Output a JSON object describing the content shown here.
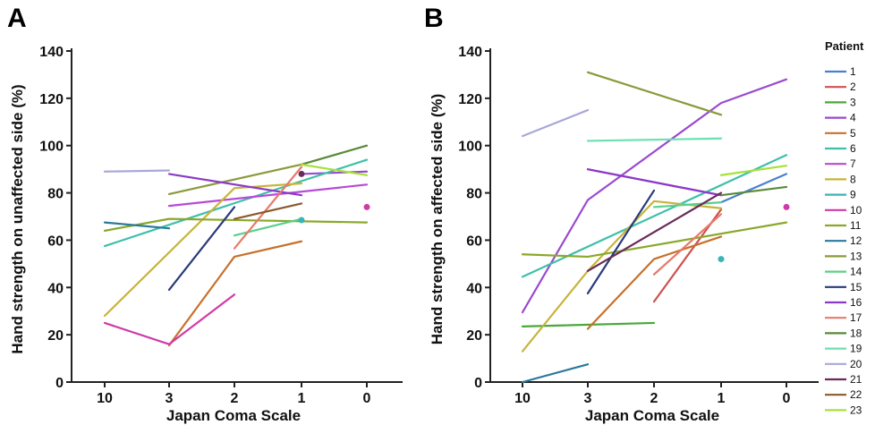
{
  "chart_data": [
    {
      "panel": "A",
      "type": "line",
      "ylabel": "Hand strength on unaffected side (%)",
      "xlabel": "Japan Coma Scale",
      "categories": [
        "10",
        "3",
        "2",
        "1",
        "0"
      ],
      "yticks": [
        0,
        20,
        40,
        60,
        80,
        100,
        120,
        140
      ],
      "ylim": [
        0,
        140
      ],
      "series": [
        {
          "name": "1",
          "color": "#4a7fd0",
          "points": [
            {
              "x": "1",
              "y": 88
            }
          ]
        },
        {
          "name": "2",
          "color": "#d05050",
          "points": [
            {
              "x": "1",
              "y": 88
            }
          ]
        },
        {
          "name": "3",
          "color": "#4aa83a",
          "points": [
            {
              "x": "1",
              "y": 68
            }
          ]
        },
        {
          "name": "4",
          "color": "#9a4ad0",
          "points": [
            {
              "x": "1",
              "y": 88
            },
            {
              "x": "0",
              "y": 89
            }
          ]
        },
        {
          "name": "5",
          "color": "#c8702a",
          "points": [
            {
              "x": "3",
              "y": 15.5
            },
            {
              "x": "2",
              "y": 53
            },
            {
              "x": "1",
              "y": 59.5
            }
          ]
        },
        {
          "name": "6",
          "color": "#3ec0a8",
          "points": [
            {
              "x": "10",
              "y": 57.5
            },
            {
              "x": "1",
              "y": 85
            },
            {
              "x": "0",
              "y": 94
            }
          ]
        },
        {
          "name": "7",
          "color": "#b84ad6",
          "points": [
            {
              "x": "3",
              "y": 74.5
            },
            {
              "x": "0",
              "y": 83.5
            }
          ]
        },
        {
          "name": "8",
          "color": "#c8b43a",
          "points": [
            {
              "x": "10",
              "y": 28
            },
            {
              "x": "2",
              "y": 82
            },
            {
              "x": "1",
              "y": 84
            }
          ]
        },
        {
          "name": "9",
          "color": "#3ab4b4",
          "points": [
            {
              "x": "1",
              "y": 68.5
            }
          ]
        },
        {
          "name": "10",
          "color": "#d03aa8",
          "points": [
            {
              "x": "10",
              "y": 25
            },
            {
              "x": "3",
              "y": 16
            },
            {
              "x": "2",
              "y": 37
            }
          ]
        },
        {
          "name": "11",
          "color": "#8aa82a",
          "points": [
            {
              "x": "10",
              "y": 64
            },
            {
              "x": "3",
              "y": 69
            },
            {
              "x": "0",
              "y": 67.5
            }
          ]
        },
        {
          "name": "12",
          "color": "#2a7a9a",
          "points": [
            {
              "x": "10",
              "y": 67.5
            },
            {
              "x": "3",
              "y": 65
            }
          ]
        },
        {
          "name": "13",
          "color": "#8a9a3a",
          "points": [
            {
              "x": "3",
              "y": 79.5
            },
            {
              "x": "1",
              "y": 92
            }
          ]
        },
        {
          "name": "14",
          "color": "#5ad08a",
          "points": [
            {
              "x": "2",
              "y": 62
            },
            {
              "x": "1",
              "y": 69
            }
          ]
        },
        {
          "name": "15",
          "color": "#2a3a7a",
          "points": [
            {
              "x": "3",
              "y": 39
            },
            {
              "x": "2",
              "y": 74
            }
          ]
        },
        {
          "name": "16",
          "color": "#8a3ac8",
          "points": [
            {
              "x": "3",
              "y": 88
            },
            {
              "x": "1",
              "y": 79
            }
          ]
        },
        {
          "name": "17",
          "color": "#e87a6a",
          "points": [
            {
              "x": "2",
              "y": 56.5
            },
            {
              "x": "1",
              "y": 91
            }
          ]
        },
        {
          "name": "18",
          "color": "#5a8a3a",
          "points": [
            {
              "x": "1",
              "y": 92
            },
            {
              "x": "0",
              "y": 100
            }
          ]
        },
        {
          "name": "19",
          "color": "#6ae0b0",
          "points": [
            {
              "x": "1",
              "y": 84
            }
          ]
        },
        {
          "name": "20",
          "color": "#a8a8d8",
          "points": [
            {
              "x": "10",
              "y": 89
            },
            {
              "x": "3",
              "y": 89.5
            }
          ]
        },
        {
          "name": "21",
          "color": "#6a2a5a",
          "points": [
            {
              "x": "1",
              "y": 88
            }
          ]
        },
        {
          "name": "22",
          "color": "#8a5a2a",
          "points": [
            {
              "x": "2",
              "y": 69
            },
            {
              "x": "1",
              "y": 75.5
            }
          ]
        },
        {
          "name": "23",
          "color": "#a8e03a",
          "points": [
            {
              "x": "1",
              "y": 92
            },
            {
              "x": "0",
              "y": 87.5
            }
          ]
        }
      ],
      "isolated_points": [
        {
          "x": "1",
          "y": 68.5,
          "color": "#3ab4b4"
        },
        {
          "x": "1",
          "y": 88,
          "color": "#6a2a5a"
        },
        {
          "x": "0",
          "y": 74,
          "color": "#d03aa8"
        }
      ]
    },
    {
      "panel": "B",
      "type": "line",
      "ylabel": "Hand strength on affected side (%)",
      "xlabel": "Japan Coma Scale",
      "categories": [
        "10",
        "3",
        "2",
        "1",
        "0"
      ],
      "yticks": [
        0,
        20,
        40,
        60,
        80,
        100,
        120,
        140
      ],
      "ylim": [
        0,
        140
      ],
      "series": [
        {
          "name": "1",
          "color": "#4a7fd0",
          "points": [
            {
              "x": "1",
              "y": 76
            },
            {
              "x": "0",
              "y": 88
            }
          ]
        },
        {
          "name": "2",
          "color": "#d05050",
          "points": [
            {
              "x": "2",
              "y": 34
            },
            {
              "x": "1",
              "y": 73
            }
          ]
        },
        {
          "name": "3",
          "color": "#4aa83a",
          "points": [
            {
              "x": "10",
              "y": 23.5
            },
            {
              "x": "2",
              "y": 25
            }
          ]
        },
        {
          "name": "4",
          "color": "#9a4ad0",
          "points": [
            {
              "x": "10",
              "y": 29.5
            },
            {
              "x": "3",
              "y": 77
            },
            {
              "x": "1",
              "y": 118
            },
            {
              "x": "0",
              "y": 128
            }
          ]
        },
        {
          "name": "5",
          "color": "#c8702a",
          "points": [
            {
              "x": "3",
              "y": 22.5
            },
            {
              "x": "2",
              "y": 52
            },
            {
              "x": "1",
              "y": 61.5
            }
          ]
        },
        {
          "name": "6",
          "color": "#3ec0a8",
          "points": [
            {
              "x": "10",
              "y": 44.5
            },
            {
              "x": "0",
              "y": 96
            }
          ]
        },
        {
          "name": "7",
          "color": "#b84ad6",
          "points": [
            {
              "x": "3",
              "y": 90
            },
            {
              "x": "1",
              "y": 79
            }
          ]
        },
        {
          "name": "8",
          "color": "#c8b43a",
          "points": [
            {
              "x": "10",
              "y": 13
            },
            {
              "x": "3",
              "y": 47
            },
            {
              "x": "2",
              "y": 76.5
            },
            {
              "x": "1",
              "y": 73.5
            }
          ]
        },
        {
          "name": "9",
          "color": "#3ab4b4",
          "points": [
            {
              "x": "1",
              "y": 52
            }
          ]
        },
        {
          "name": "10",
          "color": "#d03aa8",
          "points": [
            {
              "x": "0",
              "y": 74
            }
          ]
        },
        {
          "name": "11",
          "color": "#8aa82a",
          "points": [
            {
              "x": "10",
              "y": 54
            },
            {
              "x": "3",
              "y": 53
            },
            {
              "x": "0",
              "y": 67.5
            }
          ]
        },
        {
          "name": "12",
          "color": "#2a7a9a",
          "points": [
            {
              "x": "10",
              "y": 0
            },
            {
              "x": "3",
              "y": 7.5
            }
          ]
        },
        {
          "name": "13",
          "color": "#8a9a3a",
          "points": [
            {
              "x": "3",
              "y": 131
            },
            {
              "x": "1",
              "y": 113
            }
          ]
        },
        {
          "name": "14",
          "color": "#5ad08a",
          "points": [
            {
              "x": "2",
              "y": 74
            },
            {
              "x": "1",
              "y": 76
            }
          ]
        },
        {
          "name": "15",
          "color": "#2a3a7a",
          "points": [
            {
              "x": "3",
              "y": 37.5
            },
            {
              "x": "2",
              "y": 81
            }
          ]
        },
        {
          "name": "16",
          "color": "#8a3ac8",
          "points": [
            {
              "x": "3",
              "y": 90
            },
            {
              "x": "1",
              "y": 79
            }
          ]
        },
        {
          "name": "17",
          "color": "#e87a6a",
          "points": [
            {
              "x": "2",
              "y": 45.5
            },
            {
              "x": "1",
              "y": 71
            }
          ]
        },
        {
          "name": "18",
          "color": "#5a8a3a",
          "points": [
            {
              "x": "1",
              "y": 79
            },
            {
              "x": "0",
              "y": 82.5
            }
          ]
        },
        {
          "name": "19",
          "color": "#6ae0b0",
          "points": [
            {
              "x": "3",
              "y": 102
            },
            {
              "x": "1",
              "y": 103
            }
          ]
        },
        {
          "name": "20",
          "color": "#a8a8d8",
          "points": [
            {
              "x": "10",
              "y": 104
            },
            {
              "x": "3",
              "y": 115
            }
          ]
        },
        {
          "name": "21",
          "color": "#6a2a5a",
          "points": [
            {
              "x": "3",
              "y": 47
            },
            {
              "x": "1",
              "y": 80
            }
          ]
        },
        {
          "name": "22",
          "color": "#8a5a2a",
          "points": []
        },
        {
          "name": "23",
          "color": "#a8e03a",
          "points": [
            {
              "x": "1",
              "y": 87.5
            },
            {
              "x": "0",
              "y": 91.5
            }
          ]
        }
      ],
      "isolated_points": [
        {
          "x": "1",
          "y": 52,
          "color": "#3ab4b4"
        },
        {
          "x": "0",
          "y": 74,
          "color": "#d03aa8"
        }
      ]
    }
  ],
  "panels": [
    {
      "label": "A"
    },
    {
      "label": "B"
    }
  ],
  "legend": {
    "title": "Patient",
    "entries": [
      "1",
      "2",
      "3",
      "4",
      "5",
      "6",
      "7",
      "8",
      "9",
      "10",
      "11",
      "12",
      "13",
      "14",
      "15",
      "16",
      "17",
      "18",
      "19",
      "20",
      "21",
      "22",
      "23"
    ],
    "colors": [
      "#4a7fd0",
      "#d05050",
      "#4aa83a",
      "#9a4ad0",
      "#c8702a",
      "#3ec0a8",
      "#b84ad6",
      "#c8b43a",
      "#3ab4b4",
      "#d03aa8",
      "#8aa82a",
      "#2a7a9a",
      "#8a9a3a",
      "#5ad08a",
      "#2a3a7a",
      "#8a3ac8",
      "#e87a6a",
      "#5a8a3a",
      "#6ae0b0",
      "#a8a8d8",
      "#6a2a5a",
      "#8a5a2a",
      "#a8e03a"
    ]
  }
}
